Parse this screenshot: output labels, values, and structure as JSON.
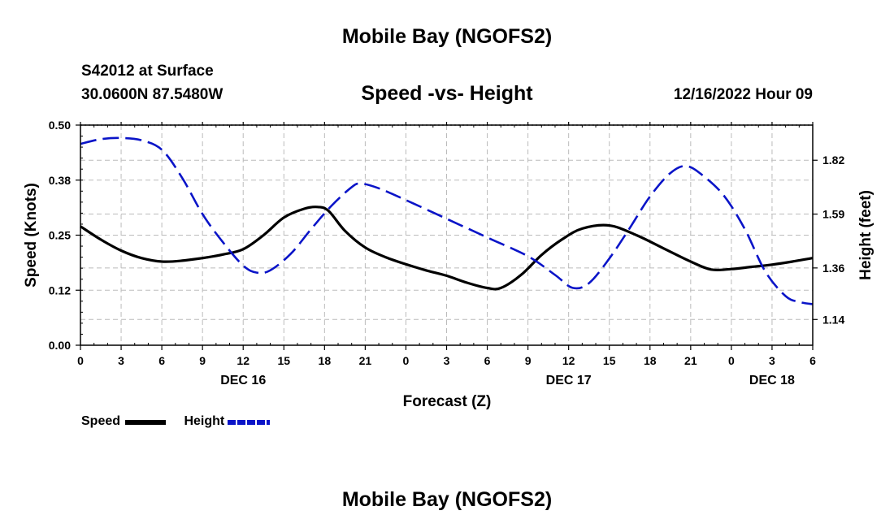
{
  "header": {
    "title": "Mobile Bay (NGOFS2)",
    "station": "S42012 at Surface",
    "coords": "30.0600N  87.5480W",
    "subtitle": "Speed -vs- Height",
    "datetime": "12/16/2022 Hour 09"
  },
  "footer": {
    "title": "Mobile Bay (NGOFS2)"
  },
  "legend": {
    "speed_label": "Speed",
    "height_label": "Height"
  },
  "colors": {
    "speed": "#000000",
    "height": "#0a14c8",
    "grid": "#bbbbbb"
  },
  "chart_data": {
    "type": "line",
    "title": "Speed -vs- Height",
    "xlabel": "Forecast (Z)",
    "ylabel": "Speed (Knots)",
    "y2label": "Height (feet)",
    "xlim": [
      0,
      54
    ],
    "ylim": [
      0,
      0.5
    ],
    "y2lim": [
      1.03,
      1.97
    ],
    "x_ticks": [
      0,
      3,
      6,
      9,
      12,
      15,
      18,
      21,
      24,
      27,
      30,
      33,
      36,
      39,
      42,
      45,
      48,
      51,
      54
    ],
    "x_tick_labels": [
      "0",
      "3",
      "6",
      "9",
      "12",
      "15",
      "18",
      "21",
      "0",
      "3",
      "6",
      "9",
      "12",
      "15",
      "18",
      "21",
      "0",
      "3",
      "6"
    ],
    "day_labels": [
      {
        "x": 12,
        "label": "DEC 16"
      },
      {
        "x": 36,
        "label": "DEC 17"
      },
      {
        "x": 51,
        "label": "DEC 18"
      }
    ],
    "y_ticks": [
      0,
      0.125,
      0.25,
      0.375,
      0.5
    ],
    "y_tick_labels": [
      "0.00",
      "0.12",
      "0.25",
      "0.38",
      "0.50"
    ],
    "y2_ticks": [
      1.14,
      1.36,
      1.59,
      1.82
    ],
    "y2_tick_labels": [
      "1.14",
      "1.36",
      "1.59",
      "1.82"
    ],
    "series": [
      {
        "name": "Speed",
        "axis": "left",
        "style": "solid",
        "x": [
          0,
          1.5,
          3,
          4.5,
          6,
          7.5,
          9,
          10.5,
          12,
          13.5,
          15,
          16.5,
          17.5,
          18.3,
          19.5,
          21,
          22.5,
          24,
          25.5,
          27,
          28.5,
          30,
          31,
          32.5,
          34,
          35.5,
          37,
          39,
          41,
          43,
          45,
          46.5,
          48,
          49.5,
          51,
          52.5,
          54
        ],
        "values": [
          0.27,
          0.24,
          0.215,
          0.198,
          0.19,
          0.192,
          0.198,
          0.206,
          0.218,
          0.25,
          0.29,
          0.31,
          0.314,
          0.305,
          0.26,
          0.222,
          0.2,
          0.184,
          0.17,
          0.158,
          0.142,
          0.13,
          0.13,
          0.16,
          0.205,
          0.24,
          0.265,
          0.272,
          0.25,
          0.22,
          0.19,
          0.172,
          0.173,
          0.178,
          0.183,
          0.19,
          0.198
        ]
      },
      {
        "name": "Height",
        "axis": "right",
        "style": "dashed",
        "x": [
          0,
          1.5,
          3,
          4.5,
          6,
          7.5,
          9,
          10.5,
          12,
          13,
          14,
          15.5,
          17,
          18.5,
          20,
          20.7,
          22,
          24,
          27,
          30,
          33,
          35,
          36.3,
          37.5,
          39,
          40.5,
          42,
          43.5,
          44.7,
          46,
          47.5,
          49,
          50.5,
          52,
          53,
          54
        ],
        "values": [
          1.89,
          1.91,
          1.915,
          1.905,
          1.865,
          1.745,
          1.59,
          1.47,
          1.37,
          1.34,
          1.35,
          1.42,
          1.525,
          1.625,
          1.705,
          1.72,
          1.7,
          1.65,
          1.57,
          1.49,
          1.41,
          1.33,
          1.275,
          1.295,
          1.4,
          1.53,
          1.665,
          1.765,
          1.795,
          1.75,
          1.665,
          1.525,
          1.345,
          1.24,
          1.215,
          1.205
        ]
      }
    ]
  }
}
